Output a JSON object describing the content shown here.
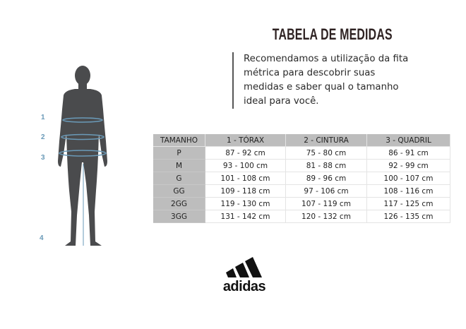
{
  "title": "TABELA DE MEDIDAS",
  "intro": "Recomendamos a utilização da fita métrica para descobrir suas medidas e saber qual o tamanho ideal para você.",
  "figure": {
    "labels": [
      "1",
      "2",
      "3",
      "4"
    ],
    "silhouette_color": "#4a4b4d",
    "tape_color": "#6a9ab8"
  },
  "table": {
    "headers": [
      "TAMANHO",
      "1 - TÓRAX",
      "2 - CINTURA",
      "3 - QUADRIL"
    ],
    "rows": [
      [
        "P",
        "87 - 92 cm",
        "75 - 80 cm",
        "86 - 91 cm"
      ],
      [
        "M",
        "93 - 100 cm",
        "81 - 88 cm",
        "92 - 99 cm"
      ],
      [
        "G",
        "101 - 108 cm",
        "89 - 96 cm",
        "100 - 107 cm"
      ],
      [
        "GG",
        "109 - 118 cm",
        "97 - 106 cm",
        "108 - 116 cm"
      ],
      [
        "2GG",
        "119 - 130 cm",
        "107 - 119 cm",
        "117 - 125 cm"
      ],
      [
        "3GG",
        "131 - 142 cm",
        "120 - 132 cm",
        "126 - 135 cm"
      ]
    ]
  },
  "logo": {
    "text": "adidas"
  }
}
